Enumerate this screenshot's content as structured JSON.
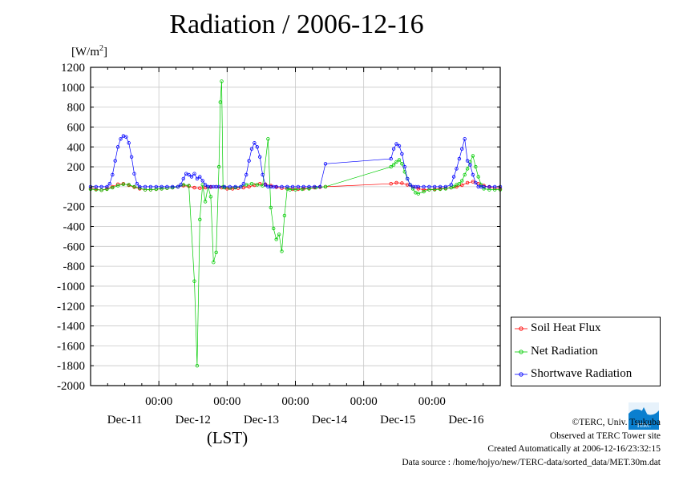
{
  "chart_data": {
    "type": "line",
    "title": "Radiation / 2006-12-16",
    "ylabel": "[W/m2]",
    "ylabel_base": "[W/m",
    "ylabel_sup": "2",
    "ylabel_end": "]",
    "xlabel": "(LST)",
    "ylim": [
      -2000,
      1200
    ],
    "xlim": [
      0,
      6
    ],
    "yticks": [
      "1200",
      "1000",
      "800",
      "600",
      "400",
      "200",
      "0",
      "-200",
      "-400",
      "-600",
      "-800",
      "-1000",
      "-1200",
      "-1400",
      "-1600",
      "-1800",
      "-2000"
    ],
    "x_time_labels": [
      "00:00",
      "00:00",
      "00:00",
      "00:00",
      "00:00"
    ],
    "x_date_labels": [
      "Dec-11",
      "Dec-12",
      "Dec-13",
      "Dec-14",
      "Dec-15",
      "Dec-16"
    ],
    "grid": true,
    "legend_position": "lower-right, outside plot",
    "series": [
      {
        "name": "Soil Heat Flux",
        "color": "#ff0000",
        "x": [
          0.0,
          0.08,
          0.16,
          0.24,
          0.32,
          0.4,
          0.48,
          0.56,
          0.64,
          0.72,
          0.8,
          0.88,
          0.96,
          1.04,
          1.12,
          1.2,
          1.28,
          1.36,
          1.44,
          1.52,
          1.6,
          1.68,
          1.76,
          1.84,
          1.92,
          2.0,
          2.08,
          2.16,
          2.24,
          2.32,
          2.4,
          2.48,
          2.56,
          2.64,
          2.72,
          2.8,
          2.88,
          2.96,
          3.04,
          3.12,
          3.2,
          3.28,
          3.36,
          3.44,
          4.4,
          4.48,
          4.56,
          4.64,
          4.72,
          4.8,
          4.88,
          4.96,
          5.04,
          5.12,
          5.2,
          5.28,
          5.36,
          5.44,
          5.52,
          5.6,
          5.68,
          5.76,
          5.84,
          5.92,
          6.0
        ],
        "y": [
          -20,
          -25,
          -35,
          -20,
          0,
          25,
          30,
          15,
          -5,
          -20,
          -30,
          -30,
          -25,
          -20,
          -15,
          -10,
          0,
          10,
          5,
          -10,
          -15,
          -10,
          -5,
          0,
          -10,
          -20,
          -20,
          -15,
          -10,
          0,
          15,
          30,
          25,
          10,
          -5,
          -15,
          -20,
          -25,
          -25,
          -20,
          -15,
          -10,
          -5,
          0,
          30,
          40,
          35,
          20,
          0,
          -20,
          -30,
          -30,
          -25,
          -20,
          -15,
          -10,
          0,
          15,
          40,
          50,
          30,
          10,
          -5,
          -15,
          -20
        ]
      },
      {
        "name": "Net Radiation",
        "color": "#00cc00",
        "x": [
          0.0,
          0.08,
          0.16,
          0.24,
          0.32,
          0.4,
          0.48,
          0.56,
          0.64,
          0.72,
          0.8,
          0.88,
          0.96,
          1.04,
          1.12,
          1.2,
          1.28,
          1.36,
          1.44,
          1.52,
          1.56,
          1.6,
          1.64,
          1.68,
          1.72,
          1.76,
          1.8,
          1.84,
          1.88,
          1.9,
          1.92,
          1.94,
          1.96,
          2.04,
          2.12,
          2.2,
          2.28,
          2.36,
          2.44,
          2.52,
          2.6,
          2.64,
          2.68,
          2.72,
          2.76,
          2.8,
          2.84,
          2.88,
          2.92,
          3.0,
          3.1,
          3.2,
          3.3,
          3.44,
          4.4,
          4.44,
          4.48,
          4.52,
          4.56,
          4.6,
          4.64,
          4.68,
          4.72,
          4.76,
          4.8,
          4.88,
          4.96,
          5.04,
          5.12,
          5.2,
          5.28,
          5.32,
          5.36,
          5.4,
          5.44,
          5.48,
          5.52,
          5.56,
          5.6,
          5.64,
          5.68,
          5.72,
          5.76,
          5.84,
          5.92,
          6.0
        ],
        "y": [
          -25,
          -30,
          -35,
          -25,
          -10,
          10,
          25,
          20,
          0,
          -15,
          -30,
          -30,
          -25,
          -20,
          -15,
          -10,
          0,
          20,
          10,
          -950,
          -1800,
          -330,
          20,
          -150,
          0,
          -100,
          -760,
          -660,
          200,
          850,
          1060,
          0,
          -10,
          -15,
          -10,
          0,
          20,
          30,
          20,
          10,
          480,
          -210,
          -420,
          -530,
          -480,
          -650,
          -290,
          -20,
          -30,
          -30,
          -25,
          -20,
          -10,
          0,
          200,
          220,
          250,
          270,
          230,
          150,
          80,
          20,
          -20,
          -60,
          -70,
          -50,
          -30,
          -30,
          -25,
          -20,
          -10,
          0,
          20,
          30,
          60,
          120,
          180,
          250,
          310,
          200,
          100,
          20,
          -20,
          -30,
          -30,
          -30
        ]
      },
      {
        "name": "Shortwave Radiation",
        "color": "#0000ff",
        "x": [
          0.0,
          0.08,
          0.16,
          0.24,
          0.28,
          0.32,
          0.36,
          0.4,
          0.44,
          0.48,
          0.52,
          0.56,
          0.6,
          0.64,
          0.68,
          0.72,
          0.8,
          0.88,
          0.96,
          1.04,
          1.12,
          1.2,
          1.28,
          1.32,
          1.36,
          1.4,
          1.44,
          1.48,
          1.52,
          1.56,
          1.6,
          1.64,
          1.68,
          1.72,
          1.76,
          1.8,
          1.84,
          1.88,
          1.96,
          2.04,
          2.12,
          2.2,
          2.24,
          2.28,
          2.32,
          2.36,
          2.4,
          2.44,
          2.48,
          2.52,
          2.56,
          2.6,
          2.64,
          2.68,
          2.72,
          2.8,
          2.88,
          2.96,
          3.04,
          3.12,
          3.2,
          3.28,
          3.36,
          3.44,
          4.4,
          4.44,
          4.48,
          4.52,
          4.56,
          4.6,
          4.64,
          4.68,
          4.72,
          4.76,
          4.8,
          4.88,
          4.96,
          5.04,
          5.12,
          5.2,
          5.28,
          5.32,
          5.36,
          5.4,
          5.44,
          5.48,
          5.52,
          5.56,
          5.6,
          5.64,
          5.68,
          5.72,
          5.76,
          5.84,
          5.92,
          6.0
        ],
        "y": [
          0,
          0,
          0,
          0,
          30,
          120,
          260,
          400,
          480,
          510,
          500,
          440,
          300,
          130,
          30,
          0,
          0,
          0,
          0,
          0,
          0,
          0,
          0,
          20,
          80,
          130,
          120,
          100,
          130,
          80,
          100,
          60,
          20,
          0,
          0,
          0,
          0,
          0,
          0,
          0,
          0,
          0,
          30,
          120,
          260,
          380,
          440,
          400,
          300,
          120,
          20,
          0,
          0,
          0,
          0,
          0,
          0,
          0,
          0,
          0,
          0,
          0,
          0,
          230,
          280,
          380,
          430,
          410,
          330,
          200,
          80,
          20,
          0,
          0,
          0,
          0,
          0,
          0,
          0,
          0,
          20,
          100,
          180,
          280,
          380,
          480,
          260,
          220,
          120,
          40,
          0,
          0,
          0,
          0,
          0,
          0
        ]
      }
    ]
  },
  "footer": {
    "copyright": "©TERC, Univ. Tsukuba",
    "observed": "Observed at TERC Tower site",
    "created": "Created Automatically at 2006-12-16/23:32:15",
    "source": "Data source : /home/hojyo/new/TERC-data/sorted_data/MET.30m.dat"
  },
  "logo": {
    "text": "TERC",
    "color": "#0a7fcf"
  }
}
